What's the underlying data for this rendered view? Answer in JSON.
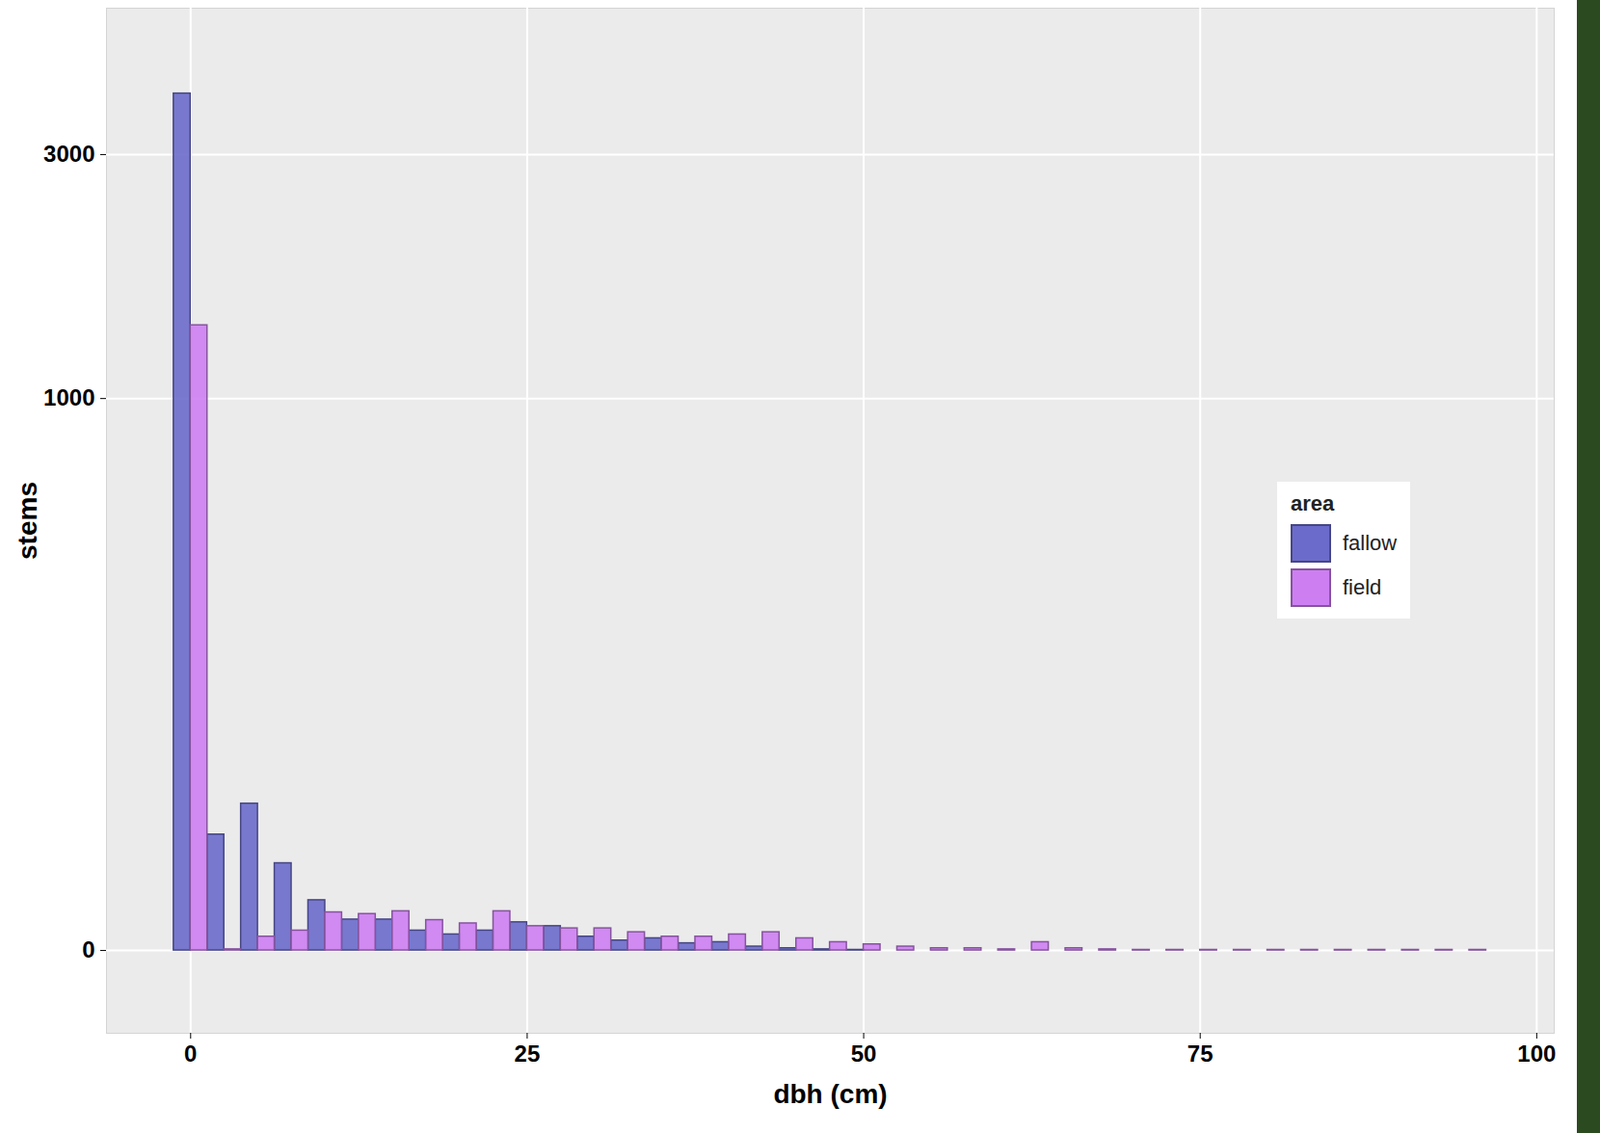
{
  "chart_data": {
    "type": "histogram",
    "x_label": "dbh (cm)",
    "y_label": "stems",
    "legend_title": "area",
    "bins": [
      -1.25,
      1.25,
      3.75,
      6.25,
      8.75,
      11.25,
      13.75,
      16.25,
      18.75,
      21.25,
      23.75,
      26.25,
      28.75,
      31.25,
      33.75,
      36.25,
      38.75,
      41.25,
      43.75,
      46.25,
      48.75,
      51.25,
      53.75,
      56.25,
      58.75,
      61.25,
      63.75,
      66.25,
      68.75,
      71.25,
      73.75,
      76.25,
      78.75,
      81.25,
      83.75,
      86.25,
      88.75,
      91.25,
      93.75,
      96.25
    ],
    "series": [
      {
        "name": "fallow",
        "color": "#6b6bcc",
        "values": [
          3500,
          210,
          266,
          158,
          91,
          56,
          56,
          36,
          29,
          36,
          51,
          44,
          25,
          18,
          22,
          13,
          15,
          7,
          4,
          2,
          1,
          0,
          0,
          0,
          0,
          0,
          0,
          0,
          0,
          0,
          0,
          0,
          0,
          0,
          0,
          0,
          0,
          0,
          0
        ]
      },
      {
        "name": "field",
        "color": "#cd7ff2",
        "values": [
          1600,
          2,
          25,
          36,
          69,
          66,
          71,
          55,
          49,
          71,
          44,
          40,
          40,
          33,
          25,
          25,
          29,
          33,
          22,
          15,
          11,
          7,
          4,
          4,
          2,
          15,
          4,
          2,
          1,
          1,
          1,
          1,
          1,
          1,
          1,
          1,
          1,
          1,
          1
        ]
      }
    ],
    "xlim": [
      -6.25,
      101.3
    ],
    "xticks": [
      0,
      25,
      50,
      75,
      100
    ],
    "ylim": [
      -150,
      4200
    ],
    "yticks": [
      0,
      1000,
      3000
    ],
    "grid": true,
    "legend": "right"
  }
}
